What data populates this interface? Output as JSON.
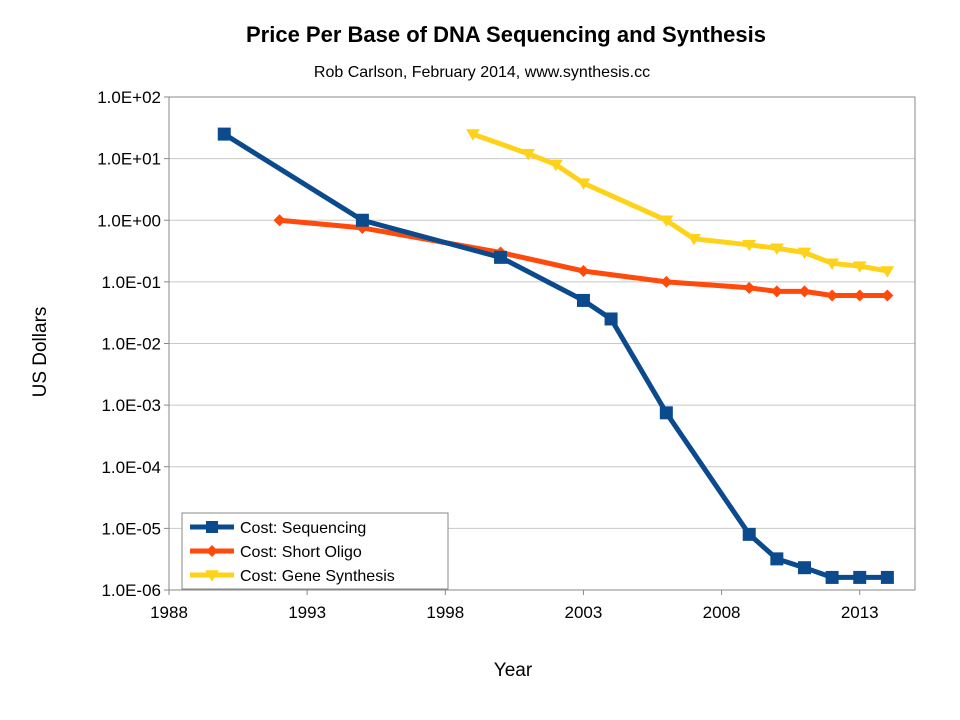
{
  "chart_data": {
    "type": "line",
    "title": "Price Per Base of DNA Sequencing and Synthesis",
    "subtitle": "Rob Carlson, February 2014, www.synthesis.cc",
    "xlabel": "Year",
    "ylabel": "US Dollars",
    "xlim": [
      1988,
      2015
    ],
    "xticks": [
      1988,
      1993,
      1998,
      2003,
      2008,
      2013
    ],
    "ylim": [
      1e-06,
      100
    ],
    "y_scale": "log",
    "yticks": [
      {
        "value": 100,
        "label": "1.0E+02"
      },
      {
        "value": 10,
        "label": "1.0E+01"
      },
      {
        "value": 1,
        "label": "1.0E+00"
      },
      {
        "value": 0.1,
        "label": "1.0E-01"
      },
      {
        "value": 0.01,
        "label": "1.0E-02"
      },
      {
        "value": 0.001,
        "label": "1.0E-03"
      },
      {
        "value": 0.0001,
        "label": "1.0E-04"
      },
      {
        "value": 1e-05,
        "label": "1.0E-05"
      },
      {
        "value": 1e-06,
        "label": "1.0E-06"
      }
    ],
    "grid": true,
    "legend_position": "bottom-left",
    "series": [
      {
        "name": "Cost: Sequencing",
        "color": "#0b4a8c",
        "marker": "square",
        "x": [
          1990,
          1995,
          2000,
          2003,
          2004,
          2006,
          2009,
          2010,
          2011,
          2012,
          2013,
          2014
        ],
        "values": [
          25,
          1,
          0.25,
          0.05,
          0.025,
          0.00075,
          8e-06,
          3.2e-06,
          2.3e-06,
          1.6e-06,
          1.6e-06,
          1.6e-06
        ]
      },
      {
        "name": "Cost: Short Oligo",
        "color": "#ff4a0c",
        "marker": "diamond",
        "x": [
          1992,
          1995,
          2000,
          2003,
          2006,
          2009,
          2010,
          2011,
          2012,
          2013,
          2014
        ],
        "values": [
          1,
          0.75,
          0.3,
          0.15,
          0.1,
          0.08,
          0.07,
          0.07,
          0.06,
          0.06,
          0.06
        ]
      },
      {
        "name": "Cost: Gene Synthesis",
        "color": "#ffd21a",
        "marker": "triangle-down",
        "x": [
          1999,
          2001,
          2002,
          2003,
          2006,
          2007,
          2009,
          2010,
          2011,
          2012,
          2013,
          2014
        ],
        "values": [
          25,
          12,
          8,
          4,
          1,
          0.5,
          0.4,
          0.35,
          0.3,
          0.2,
          0.18,
          0.15
        ]
      }
    ]
  }
}
